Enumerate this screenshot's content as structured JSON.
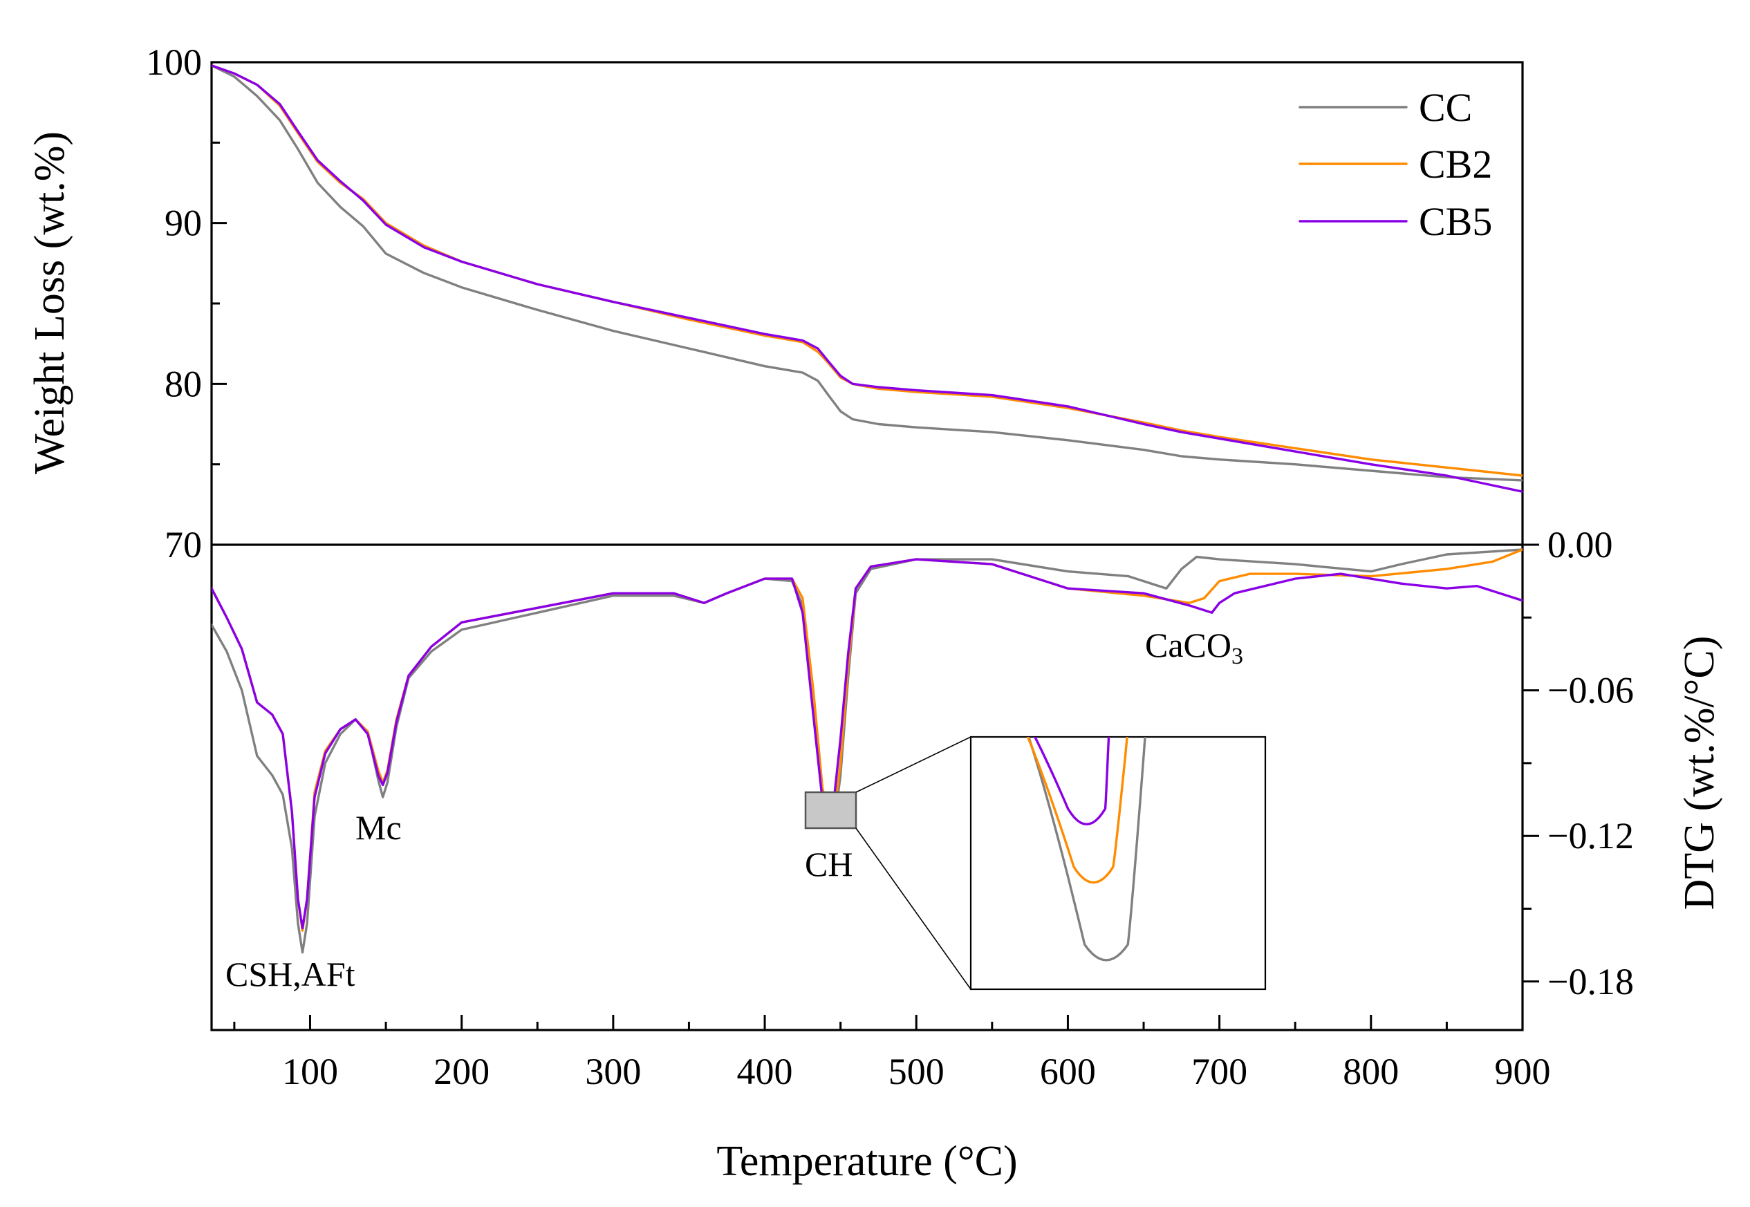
{
  "chart_data": {
    "type": "line",
    "x": {
      "label": "Temperature (°C)",
      "range": [
        35,
        900
      ],
      "ticks": [
        100,
        200,
        300,
        400,
        500,
        600,
        700,
        800,
        900
      ]
    },
    "panels": {
      "tg": {
        "ylabel": "Weight  Loss (wt.%)",
        "ylim": [
          70,
          100
        ],
        "ticks": [
          70,
          80,
          90,
          100
        ]
      },
      "dtg": {
        "ylabel": "DTG (wt.%/°C)",
        "ylim": [
          -0.2,
          0.0
        ],
        "ticks": [
          0.0,
          -0.06,
          -0.12,
          -0.18
        ],
        "tick_labels": [
          "0.00",
          "−0.06",
          "−0.12",
          "−0.18"
        ]
      }
    },
    "series": [
      {
        "name": "CC",
        "color": "#808080",
        "tg": [
          [
            35,
            99.8
          ],
          [
            50,
            99.1
          ],
          [
            65,
            97.9
          ],
          [
            80,
            96.4
          ],
          [
            92,
            94.6
          ],
          [
            105,
            92.5
          ],
          [
            120,
            91.0
          ],
          [
            135,
            89.8
          ],
          [
            150,
            88.1
          ],
          [
            175,
            86.9
          ],
          [
            200,
            86.0
          ],
          [
            250,
            84.6
          ],
          [
            300,
            83.3
          ],
          [
            350,
            82.2
          ],
          [
            400,
            81.1
          ],
          [
            425,
            80.7
          ],
          [
            435,
            80.2
          ],
          [
            442,
            79.3
          ],
          [
            450,
            78.3
          ],
          [
            458,
            77.8
          ],
          [
            475,
            77.5
          ],
          [
            500,
            77.3
          ],
          [
            550,
            77.0
          ],
          [
            600,
            76.5
          ],
          [
            650,
            75.9
          ],
          [
            675,
            75.5
          ],
          [
            700,
            75.3
          ],
          [
            750,
            75.0
          ],
          [
            800,
            74.6
          ],
          [
            850,
            74.2
          ],
          [
            900,
            74.0
          ]
        ],
        "dtg": [
          [
            35,
            -0.033
          ],
          [
            45,
            -0.044
          ],
          [
            55,
            -0.06
          ],
          [
            65,
            -0.087
          ],
          [
            75,
            -0.095
          ],
          [
            82,
            -0.103
          ],
          [
            88,
            -0.125
          ],
          [
            92,
            -0.156
          ],
          [
            95,
            -0.168
          ],
          [
            98,
            -0.156
          ],
          [
            103,
            -0.112
          ],
          [
            110,
            -0.09
          ],
          [
            120,
            -0.078
          ],
          [
            130,
            -0.072
          ],
          [
            138,
            -0.077
          ],
          [
            145,
            -0.097
          ],
          [
            148,
            -0.104
          ],
          [
            151,
            -0.098
          ],
          [
            157,
            -0.075
          ],
          [
            165,
            -0.055
          ],
          [
            180,
            -0.044
          ],
          [
            200,
            -0.035
          ],
          [
            250,
            -0.028
          ],
          [
            300,
            -0.021
          ],
          [
            340,
            -0.021
          ],
          [
            360,
            -0.024
          ],
          [
            375,
            -0.02
          ],
          [
            400,
            -0.014
          ],
          [
            418,
            -0.015
          ],
          [
            425,
            -0.025
          ],
          [
            432,
            -0.06
          ],
          [
            438,
            -0.1
          ],
          [
            442,
            -0.113
          ],
          [
            446,
            -0.114
          ],
          [
            450,
            -0.095
          ],
          [
            455,
            -0.055
          ],
          [
            460,
            -0.02
          ],
          [
            470,
            -0.01
          ],
          [
            500,
            -0.006
          ],
          [
            550,
            -0.006
          ],
          [
            600,
            -0.011
          ],
          [
            640,
            -0.013
          ],
          [
            665,
            -0.018
          ],
          [
            675,
            -0.01
          ],
          [
            685,
            -0.005
          ],
          [
            700,
            -0.006
          ],
          [
            750,
            -0.008
          ],
          [
            800,
            -0.011
          ],
          [
            820,
            -0.008
          ],
          [
            850,
            -0.004
          ],
          [
            900,
            -0.002
          ]
        ]
      },
      {
        "name": "CB2",
        "color": "#FF8C00",
        "tg": [
          [
            35,
            99.8
          ],
          [
            50,
            99.3
          ],
          [
            65,
            98.6
          ],
          [
            80,
            97.3
          ],
          [
            92,
            95.6
          ],
          [
            105,
            93.8
          ],
          [
            120,
            92.5
          ],
          [
            135,
            91.5
          ],
          [
            150,
            90.0
          ],
          [
            175,
            88.6
          ],
          [
            200,
            87.6
          ],
          [
            250,
            86.2
          ],
          [
            300,
            85.1
          ],
          [
            350,
            84.0
          ],
          [
            400,
            83.0
          ],
          [
            425,
            82.6
          ],
          [
            435,
            82.0
          ],
          [
            442,
            81.3
          ],
          [
            450,
            80.4
          ],
          [
            458,
            80.0
          ],
          [
            475,
            79.7
          ],
          [
            500,
            79.5
          ],
          [
            550,
            79.2
          ],
          [
            600,
            78.5
          ],
          [
            650,
            77.6
          ],
          [
            675,
            77.1
          ],
          [
            700,
            76.7
          ],
          [
            750,
            76.0
          ],
          [
            800,
            75.3
          ],
          [
            850,
            74.8
          ],
          [
            900,
            74.3
          ]
        ],
        "dtg": [
          [
            35,
            -0.018
          ],
          [
            45,
            -0.03
          ],
          [
            55,
            -0.043
          ],
          [
            65,
            -0.065
          ],
          [
            75,
            -0.07
          ],
          [
            82,
            -0.078
          ],
          [
            88,
            -0.11
          ],
          [
            92,
            -0.146
          ],
          [
            95,
            -0.159
          ],
          [
            98,
            -0.146
          ],
          [
            103,
            -0.102
          ],
          [
            110,
            -0.085
          ],
          [
            120,
            -0.076
          ],
          [
            130,
            -0.072
          ],
          [
            138,
            -0.077
          ],
          [
            145,
            -0.093
          ],
          [
            148,
            -0.098
          ],
          [
            151,
            -0.093
          ],
          [
            157,
            -0.072
          ],
          [
            165,
            -0.054
          ],
          [
            180,
            -0.042
          ],
          [
            200,
            -0.032
          ],
          [
            250,
            -0.026
          ],
          [
            300,
            -0.02
          ],
          [
            340,
            -0.02
          ],
          [
            360,
            -0.024
          ],
          [
            375,
            -0.02
          ],
          [
            400,
            -0.014
          ],
          [
            418,
            -0.014
          ],
          [
            425,
            -0.022
          ],
          [
            432,
            -0.06
          ],
          [
            438,
            -0.1
          ],
          [
            442,
            -0.111
          ],
          [
            446,
            -0.11
          ],
          [
            450,
            -0.09
          ],
          [
            455,
            -0.05
          ],
          [
            460,
            -0.018
          ],
          [
            470,
            -0.009
          ],
          [
            500,
            -0.006
          ],
          [
            550,
            -0.008
          ],
          [
            600,
            -0.018
          ],
          [
            650,
            -0.021
          ],
          [
            680,
            -0.024
          ],
          [
            690,
            -0.022
          ],
          [
            700,
            -0.015
          ],
          [
            720,
            -0.012
          ],
          [
            750,
            -0.012
          ],
          [
            800,
            -0.013
          ],
          [
            850,
            -0.01
          ],
          [
            880,
            -0.007
          ],
          [
            900,
            -0.002
          ]
        ]
      },
      {
        "name": "CB5",
        "color": "#8A00E6",
        "tg": [
          [
            35,
            99.8
          ],
          [
            50,
            99.3
          ],
          [
            65,
            98.6
          ],
          [
            80,
            97.4
          ],
          [
            92,
            95.7
          ],
          [
            105,
            93.9
          ],
          [
            120,
            92.6
          ],
          [
            135,
            91.4
          ],
          [
            150,
            89.9
          ],
          [
            175,
            88.5
          ],
          [
            200,
            87.6
          ],
          [
            250,
            86.2
          ],
          [
            300,
            85.1
          ],
          [
            350,
            84.1
          ],
          [
            400,
            83.1
          ],
          [
            425,
            82.7
          ],
          [
            435,
            82.2
          ],
          [
            442,
            81.4
          ],
          [
            450,
            80.5
          ],
          [
            458,
            80.0
          ],
          [
            475,
            79.8
          ],
          [
            500,
            79.6
          ],
          [
            550,
            79.3
          ],
          [
            600,
            78.6
          ],
          [
            650,
            77.5
          ],
          [
            675,
            77.0
          ],
          [
            700,
            76.6
          ],
          [
            750,
            75.8
          ],
          [
            800,
            75.0
          ],
          [
            850,
            74.3
          ],
          [
            900,
            73.3
          ]
        ],
        "dtg": [
          [
            35,
            -0.018
          ],
          [
            45,
            -0.03
          ],
          [
            55,
            -0.043
          ],
          [
            65,
            -0.065
          ],
          [
            75,
            -0.07
          ],
          [
            82,
            -0.078
          ],
          [
            88,
            -0.11
          ],
          [
            92,
            -0.146
          ],
          [
            95,
            -0.158
          ],
          [
            98,
            -0.146
          ],
          [
            103,
            -0.104
          ],
          [
            110,
            -0.086
          ],
          [
            120,
            -0.076
          ],
          [
            130,
            -0.072
          ],
          [
            138,
            -0.078
          ],
          [
            145,
            -0.095
          ],
          [
            148,
            -0.099
          ],
          [
            151,
            -0.094
          ],
          [
            157,
            -0.073
          ],
          [
            165,
            -0.054
          ],
          [
            180,
            -0.042
          ],
          [
            200,
            -0.032
          ],
          [
            250,
            -0.026
          ],
          [
            300,
            -0.02
          ],
          [
            340,
            -0.02
          ],
          [
            360,
            -0.024
          ],
          [
            375,
            -0.02
          ],
          [
            400,
            -0.014
          ],
          [
            418,
            -0.014
          ],
          [
            425,
            -0.028
          ],
          [
            432,
            -0.07
          ],
          [
            438,
            -0.105
          ],
          [
            442,
            -0.109
          ],
          [
            446,
            -0.103
          ],
          [
            450,
            -0.08
          ],
          [
            455,
            -0.045
          ],
          [
            460,
            -0.018
          ],
          [
            470,
            -0.009
          ],
          [
            500,
            -0.006
          ],
          [
            550,
            -0.008
          ],
          [
            600,
            -0.018
          ],
          [
            650,
            -0.02
          ],
          [
            680,
            -0.025
          ],
          [
            695,
            -0.028
          ],
          [
            700,
            -0.024
          ],
          [
            710,
            -0.02
          ],
          [
            750,
            -0.014
          ],
          [
            780,
            -0.012
          ],
          [
            820,
            -0.016
          ],
          [
            850,
            -0.018
          ],
          [
            870,
            -0.017
          ],
          [
            900,
            -0.023
          ]
        ]
      }
    ],
    "annotations": [
      {
        "text": "CSH,AFt"
      },
      {
        "text": "Mc"
      },
      {
        "text": "CH"
      },
      {
        "text_base": "CaCO",
        "subscript": "3"
      }
    ],
    "legend": {
      "position": "top-right",
      "entries": [
        "CC",
        "CB2",
        "CB5"
      ]
    },
    "inset": {
      "description": "zoom of CH peak minimum",
      "x_range": [
        430,
        460
      ],
      "y_range": [
        -0.118,
        -0.105
      ],
      "minima": {
        "CC": -0.1165,
        "CB2": -0.1125,
        "CB5": -0.1095
      }
    }
  }
}
